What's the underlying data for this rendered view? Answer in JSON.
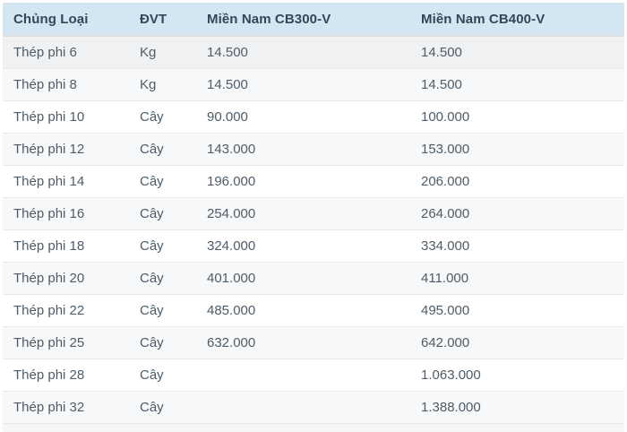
{
  "table": {
    "columns": [
      {
        "key": "type",
        "label": "Chủng Loại"
      },
      {
        "key": "unit",
        "label": "ĐVT"
      },
      {
        "key": "cb300",
        "label": "Miền Nam CB300-V"
      },
      {
        "key": "cb400",
        "label": "Miền Nam CB400-V"
      }
    ],
    "rows": [
      {
        "type": "Thép phi 6",
        "unit": "Kg",
        "cb300": "14.500",
        "cb400": "14.500"
      },
      {
        "type": "Thép phi 8",
        "unit": "Kg",
        "cb300": "14.500",
        "cb400": "14.500"
      },
      {
        "type": "Thép phi 10",
        "unit": "Cây",
        "cb300": "90.000",
        "cb400": "100.000"
      },
      {
        "type": "Thép phi 12",
        "unit": "Cây",
        "cb300": "143.000",
        "cb400": "153.000"
      },
      {
        "type": "Thép phi 14",
        "unit": "Cây",
        "cb300": "196.000",
        "cb400": "206.000"
      },
      {
        "type": "Thép phi 16",
        "unit": "Cây",
        "cb300": "254.000",
        "cb400": "264.000"
      },
      {
        "type": "Thép phi 18",
        "unit": "Cây",
        "cb300": "324.000",
        "cb400": "334.000"
      },
      {
        "type": "Thép phi 20",
        "unit": "Cây",
        "cb300": "401.000",
        "cb400": "411.000"
      },
      {
        "type": "Thép phi 22",
        "unit": "Cây",
        "cb300": "485.000",
        "cb400": "495.000"
      },
      {
        "type": "Thép phi 25",
        "unit": "Cây",
        "cb300": "632.000",
        "cb400": "642.000"
      },
      {
        "type": "Thép phi 28",
        "unit": "Cây",
        "cb300": "",
        "cb400": "1.063.000"
      },
      {
        "type": "Thép phi 32",
        "unit": "Cây",
        "cb300": "",
        "cb400": "1.388.000"
      }
    ]
  },
  "colors": {
    "header_background": "#d3e6f1",
    "header_text": "#33475b",
    "body_text": "#4d5c68",
    "row_shade": "#f7f8f9",
    "row_first_highlight": "#f0f1f2"
  }
}
